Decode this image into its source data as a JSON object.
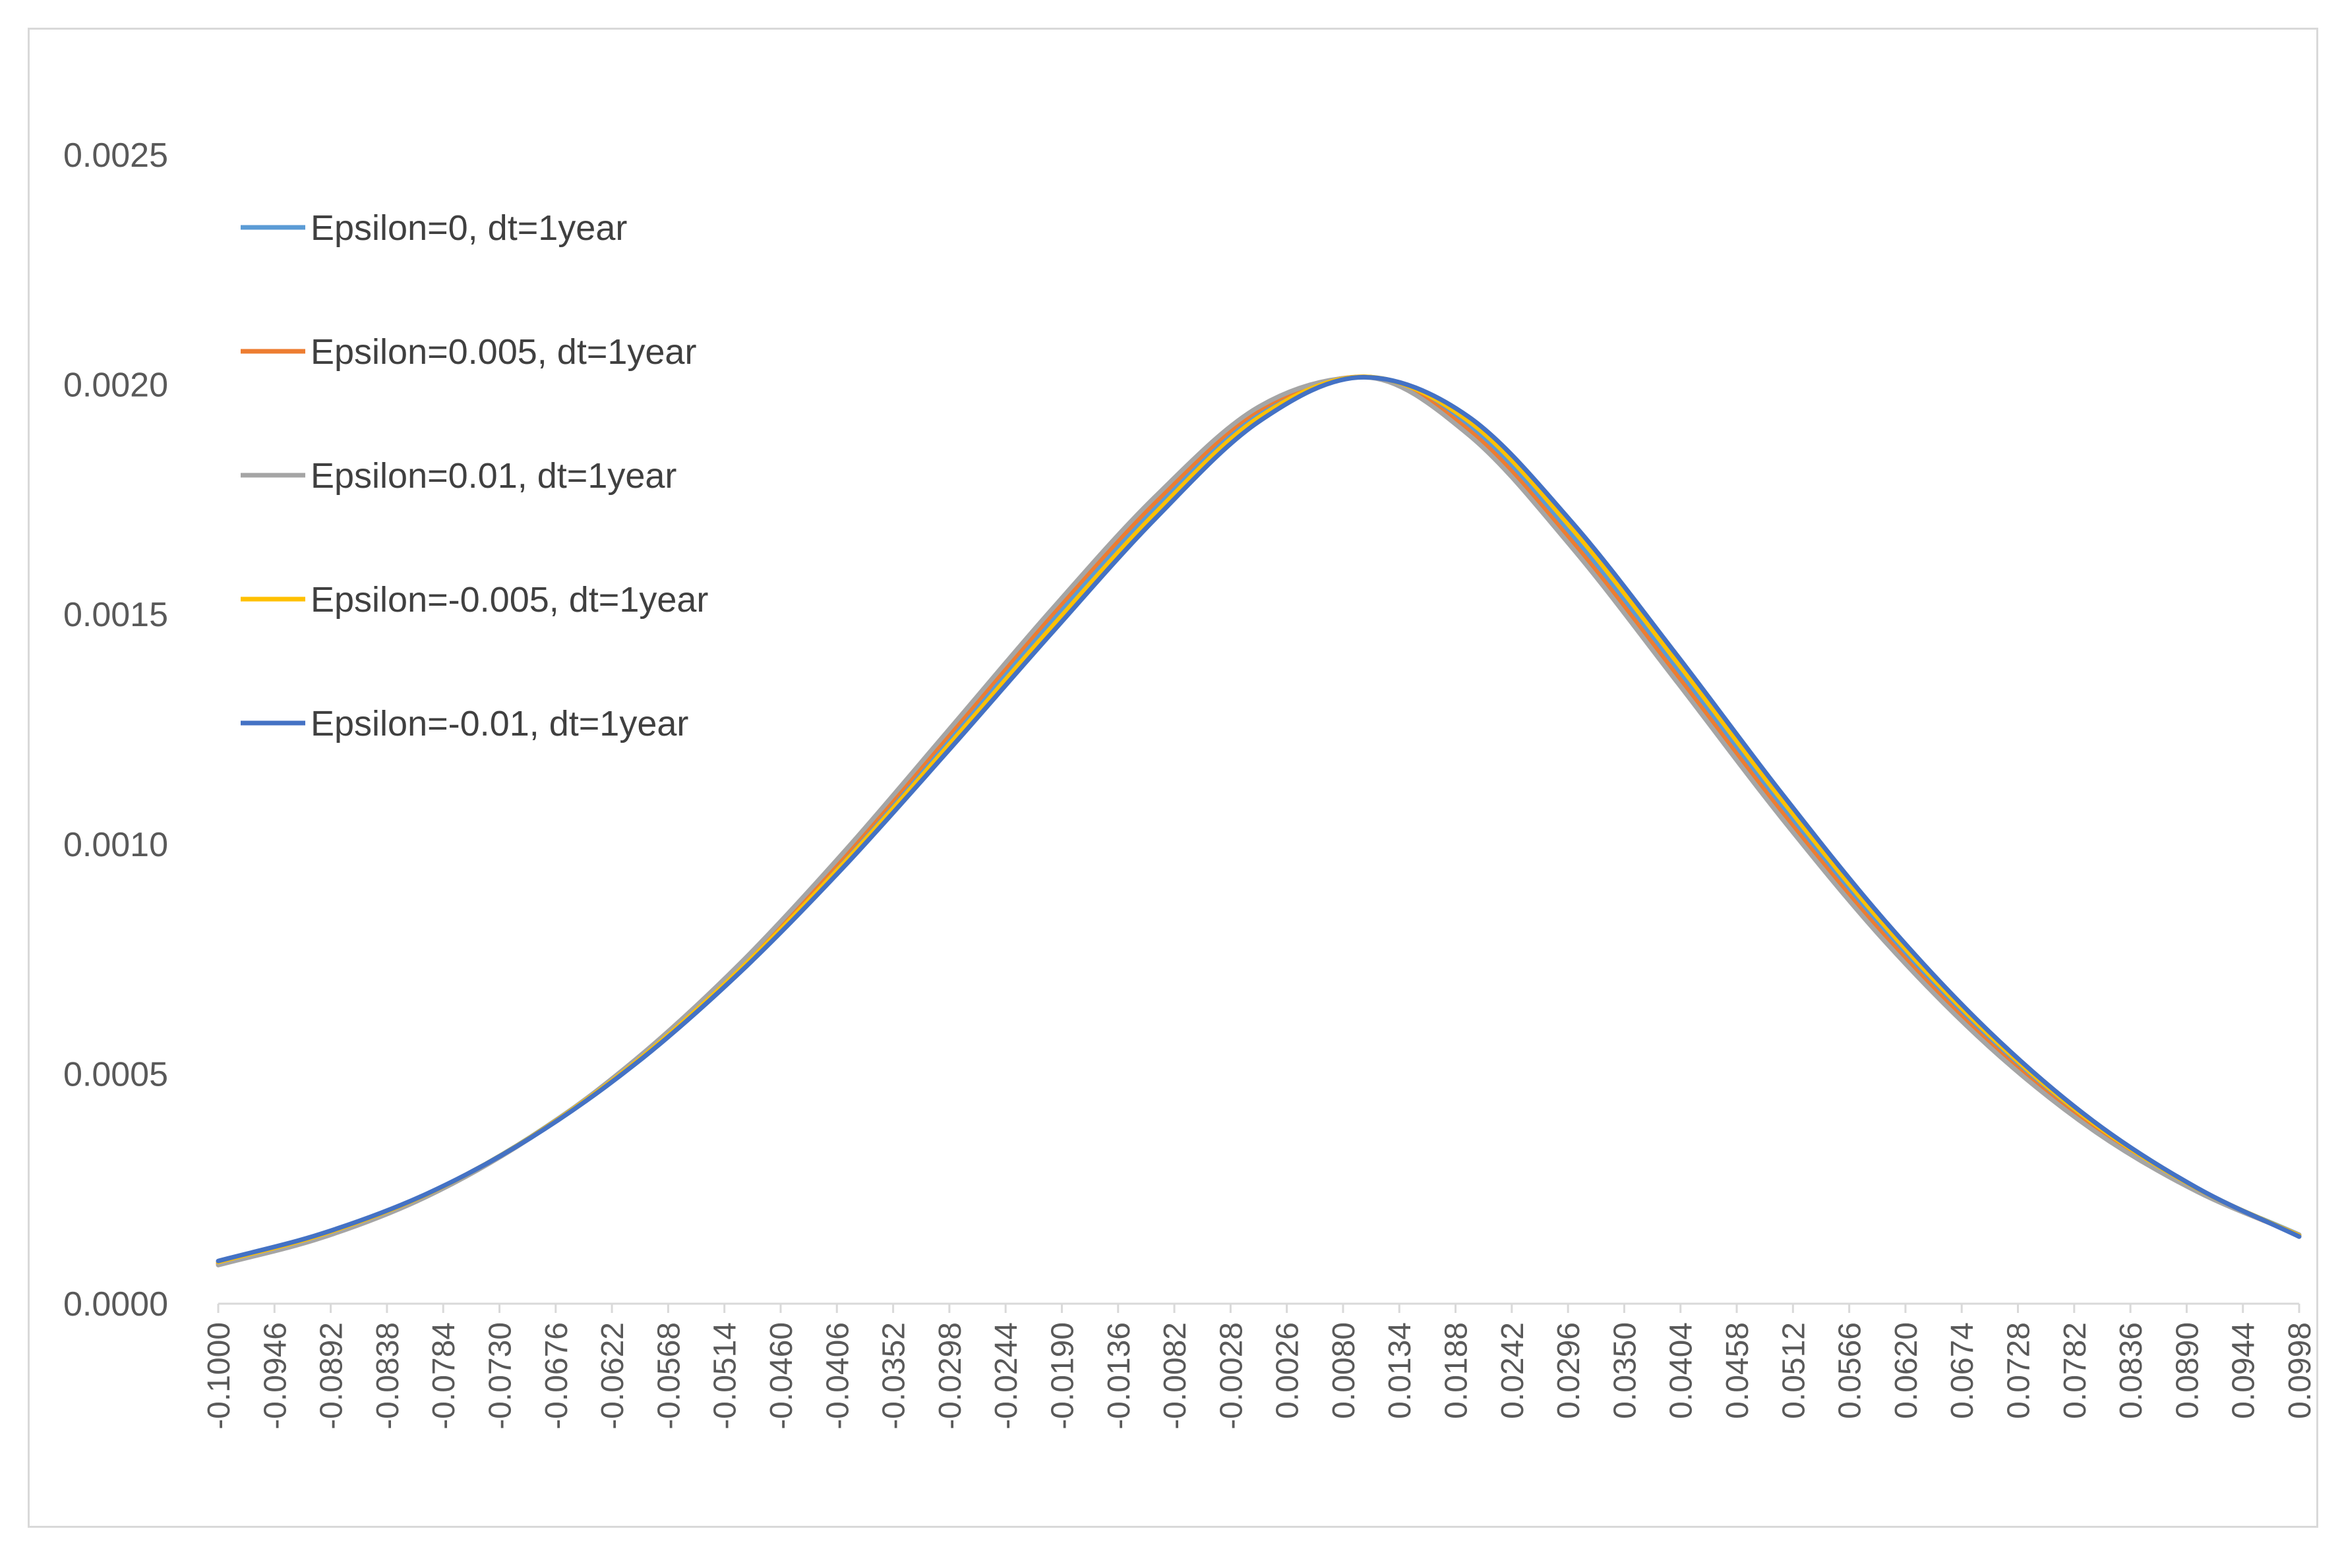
{
  "chart_data": {
    "type": "line",
    "xlabel": "",
    "ylabel": "",
    "ylim": [
      0,
      0.0025
    ],
    "yticks": [
      "0.0000",
      "0.0005",
      "0.0010",
      "0.0015",
      "0.0020",
      "0.0025"
    ],
    "x_range": [
      -0.1,
      0.0998
    ],
    "x_tick_labels": [
      "-0.1000",
      "-0.0946",
      "-0.0892",
      "-0.0838",
      "-0.0784",
      "-0.0730",
      "-0.0676",
      "-0.0622",
      "-0.0568",
      "-0.0514",
      "-0.0460",
      "-0.0406",
      "-0.0352",
      "-0.0298",
      "-0.0244",
      "-0.0190",
      "-0.0136",
      "-0.0082",
      "-0.0028",
      "0.0026",
      "0.0080",
      "0.0134",
      "0.0188",
      "0.0242",
      "0.0296",
      "0.0350",
      "0.0404",
      "0.0458",
      "0.0512",
      "0.0566",
      "0.0620",
      "0.0674",
      "0.0728",
      "0.0782",
      "0.0836",
      "0.0890",
      "0.0944",
      "0.0998"
    ],
    "grid": false,
    "legend_position": "top-left",
    "series": [
      {
        "name": "Epsilon=0, dt=1year",
        "color": "#5b9bd5",
        "x": [
          -0.1,
          -0.09,
          -0.08,
          -0.07,
          -0.06,
          -0.05,
          -0.04,
          -0.03,
          -0.02,
          -0.01,
          0,
          0.01,
          0.02,
          0.03,
          0.04,
          0.05,
          0.06,
          0.07,
          0.08,
          0.09,
          0.0998
        ],
        "values": [
          8.9e-05,
          0.000149,
          0.000237,
          0.000363,
          0.000527,
          0.00073,
          0.000965,
          0.001223,
          0.001485,
          0.001733,
          0.001938,
          0.002017,
          0.001912,
          0.001672,
          0.001384,
          0.001087,
          0.000812,
          0.000578,
          0.000389,
          0.000249,
          0.00015
        ]
      },
      {
        "name": "Epsilon=0.005, dt=1year",
        "color": "#ed7d31",
        "x": [
          -0.1,
          -0.09,
          -0.08,
          -0.07,
          -0.06,
          -0.05,
          -0.04,
          -0.03,
          -0.02,
          -0.01,
          0,
          0.01,
          0.02,
          0.03,
          0.04,
          0.05,
          0.06,
          0.07,
          0.08,
          0.09,
          0.0998
        ],
        "values": [
          8.7e-05,
          0.000147,
          0.000235,
          0.000362,
          0.000528,
          0.000734,
          0.000973,
          0.001234,
          0.001498,
          0.001745,
          0.001946,
          0.002017,
          0.001902,
          0.001658,
          0.001369,
          0.001073,
          0.0008,
          0.000568,
          0.000382,
          0.000245,
          0.000149
        ]
      },
      {
        "name": "Epsilon=0.01, dt=1year",
        "color": "#a5a5a5",
        "x": [
          -0.1,
          -0.09,
          -0.08,
          -0.07,
          -0.06,
          -0.05,
          -0.04,
          -0.03,
          -0.02,
          -0.01,
          0,
          0.01,
          0.02,
          0.03,
          0.04,
          0.05,
          0.06,
          0.07,
          0.08,
          0.09,
          0.0998
        ],
        "values": [
          8.4e-05,
          0.000144,
          0.000233,
          0.000361,
          0.00053,
          0.000738,
          0.000981,
          0.001245,
          0.00151,
          0.001757,
          0.001953,
          0.002016,
          0.001892,
          0.001645,
          0.001355,
          0.00106,
          0.000789,
          0.00056,
          0.000378,
          0.000244,
          0.00015
        ]
      },
      {
        "name": "Epsilon=-0.005, dt=1year",
        "color": "#ffc000",
        "x": [
          -0.1,
          -0.09,
          -0.08,
          -0.07,
          -0.06,
          -0.05,
          -0.04,
          -0.03,
          -0.02,
          -0.01,
          0,
          0.01,
          0.02,
          0.03,
          0.04,
          0.05,
          0.06,
          0.07,
          0.08,
          0.09,
          0.0998
        ],
        "values": [
          9.1e-05,
          0.000151,
          0.000238,
          0.000362,
          0.000524,
          0.000725,
          0.000957,
          0.001212,
          0.001472,
          0.001721,
          0.00193,
          0.002017,
          0.001922,
          0.001686,
          0.001398,
          0.0011,
          0.000823,
          0.000586,
          0.000394,
          0.000251,
          0.000148
        ]
      },
      {
        "name": "Epsilon=-0.01, dt=1year",
        "color": "#4472c4",
        "x": [
          -0.1,
          -0.09,
          -0.08,
          -0.07,
          -0.06,
          -0.05,
          -0.04,
          -0.03,
          -0.02,
          -0.01,
          0,
          0.01,
          0.02,
          0.03,
          0.04,
          0.05,
          0.06,
          0.07,
          0.08,
          0.09,
          0.0998
        ],
        "values": [
          9.3e-05,
          0.000153,
          0.000239,
          0.000361,
          0.000521,
          0.000719,
          0.000949,
          0.001201,
          0.001459,
          0.001709,
          0.001921,
          0.002016,
          0.001931,
          0.0017,
          0.001413,
          0.001114,
          0.000834,
          0.000593,
          0.000398,
          0.000252,
          0.000146
        ]
      }
    ]
  }
}
